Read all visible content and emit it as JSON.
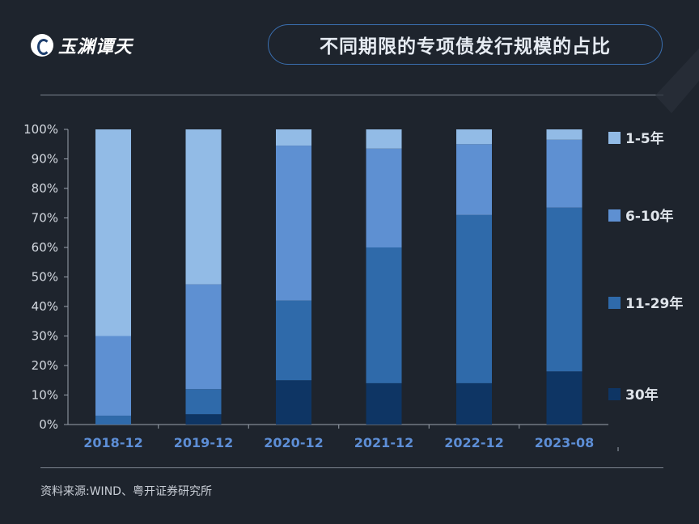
{
  "brand": {
    "logo_text": "玉渊谭天"
  },
  "title": "不同期限的专项债发行规模的占比",
  "source": "资料来源:WIND、粤开证券研究所",
  "colors": {
    "30年": "#0e3564",
    "11-29年": "#2f6aaa",
    "6-10年": "#5e90d2",
    "1-5年": "#92bbe6"
  },
  "chart_data": {
    "type": "bar",
    "stacked": true,
    "categories": [
      "2018-12",
      "2019-12",
      "2020-12",
      "2021-12",
      "2022-12",
      "2023-08"
    ],
    "series": [
      {
        "name": "30年",
        "values": [
          0,
          3.5,
          15,
          14,
          14,
          18
        ]
      },
      {
        "name": "11-29年",
        "values": [
          3,
          8.5,
          27,
          46,
          57,
          55.5
        ]
      },
      {
        "name": "6-10年",
        "values": [
          27,
          35.5,
          52.5,
          33.5,
          24,
          23
        ]
      },
      {
        "name": "1-5年",
        "values": [
          70,
          52.5,
          5.5,
          6.5,
          5,
          3.5
        ]
      }
    ],
    "ylim": [
      0,
      100
    ],
    "yticks": [
      "0%",
      "10%",
      "20%",
      "30%",
      "40%",
      "50%",
      "60%",
      "70%",
      "80%",
      "90%",
      "100%"
    ],
    "legend_order": [
      "1-5年",
      "6-10年",
      "11-29年",
      "30年"
    ],
    "legend_position": "right",
    "grid": false,
    "title": "",
    "xlabel": "",
    "ylabel": ""
  }
}
